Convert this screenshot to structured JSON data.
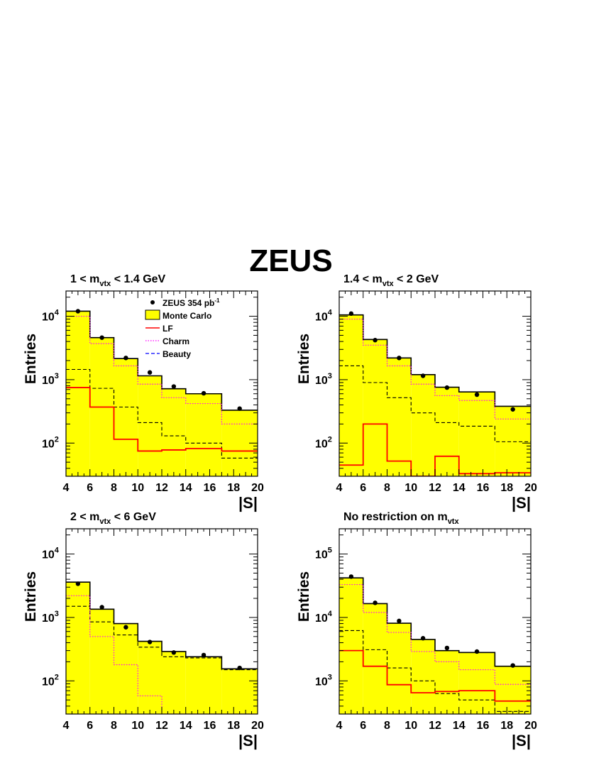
{
  "figure": {
    "title": "ZEUS",
    "colors": {
      "mc_fill": "#ffff00",
      "lf": "#ff0000",
      "charm": "#ff00ff",
      "beauty": "#000000",
      "legend_beauty_line": "#0000ff",
      "data": "#000000"
    },
    "legend": {
      "data": "ZEUS 354 pb",
      "data_sup": "-1",
      "mc": "Monte Carlo",
      "lf": "LF",
      "charm": "Charm",
      "beauty": "Beauty"
    }
  },
  "chart_data": [
    {
      "type": "histogram",
      "title_main": "1 < m",
      "title_sub": "vtx",
      "title_rest": " < 1.4 GeV",
      "ylabel": "Entries",
      "xlabel": "|S|",
      "log_y": true,
      "xlim": [
        4,
        20
      ],
      "ylim": [
        30,
        25000
      ],
      "x_ticks": [
        "4",
        "6",
        "8",
        "10",
        "12",
        "14",
        "16",
        "18",
        "20"
      ],
      "y_ticks": [
        {
          "base": "10",
          "exp": "2",
          "value": 100
        },
        {
          "base": "10",
          "exp": "3",
          "value": 1000
        },
        {
          "base": "10",
          "exp": "4",
          "value": 10000
        }
      ],
      "bin_edges": [
        4,
        6,
        8,
        10,
        12,
        14,
        17,
        20
      ],
      "monte_carlo": [
        12000,
        4600,
        2150,
        1150,
        720,
        600,
        330
      ],
      "lf": [
        750,
        370,
        115,
        75,
        78,
        82,
        75
      ],
      "charm": [
        10000,
        3700,
        1650,
        850,
        520,
        420,
        200
      ],
      "beauty": [
        1450,
        730,
        370,
        210,
        130,
        100,
        58
      ],
      "data_x": [
        5,
        7,
        9,
        11,
        13,
        15.5,
        18.5
      ],
      "data_y": [
        12000,
        4600,
        2200,
        1300,
        780,
        610,
        350
      ],
      "legend_visible": true
    },
    {
      "type": "histogram",
      "title_main": "1.4 < m",
      "title_sub": "vtx",
      "title_rest": " < 2 GeV",
      "ylabel": "Entries",
      "xlabel": "|S|",
      "log_y": true,
      "xlim": [
        4,
        20
      ],
      "ylim": [
        30,
        25000
      ],
      "x_ticks": [
        "4",
        "6",
        "8",
        "10",
        "12",
        "14",
        "16",
        "18",
        "20"
      ],
      "y_ticks": [
        {
          "base": "10",
          "exp": "2",
          "value": 100
        },
        {
          "base": "10",
          "exp": "3",
          "value": 1000
        },
        {
          "base": "10",
          "exp": "4",
          "value": 10000
        }
      ],
      "bin_edges": [
        4,
        6,
        8,
        10,
        12,
        14,
        17,
        20
      ],
      "monte_carlo": [
        10500,
        4300,
        2200,
        1200,
        760,
        640,
        380
      ],
      "lf": [
        45,
        200,
        52,
        28,
        62,
        33,
        34
      ],
      "charm": [
        9000,
        3500,
        1650,
        850,
        560,
        470,
        240
      ],
      "beauty": [
        1650,
        900,
        520,
        300,
        210,
        185,
        105
      ],
      "data_x": [
        5,
        7,
        9,
        11,
        13,
        15.5,
        18.5
      ],
      "data_y": [
        11000,
        4200,
        2200,
        1150,
        750,
        580,
        340
      ],
      "legend_visible": false
    },
    {
      "type": "histogram",
      "title_main": "2 < m",
      "title_sub": "vtx",
      "title_rest": " < 6 GeV",
      "ylabel": "Entries",
      "xlabel": "|S|",
      "log_y": true,
      "xlim": [
        4,
        20
      ],
      "ylim": [
        30,
        25000
      ],
      "x_ticks": [
        "4",
        "6",
        "8",
        "10",
        "12",
        "14",
        "16",
        "18",
        "20"
      ],
      "y_ticks": [
        {
          "base": "10",
          "exp": "2",
          "value": 100
        },
        {
          "base": "10",
          "exp": "3",
          "value": 1000
        },
        {
          "base": "10",
          "exp": "4",
          "value": 10000
        }
      ],
      "bin_edges": [
        4,
        6,
        8,
        10,
        12,
        14,
        17,
        20
      ],
      "monte_carlo": [
        3600,
        1350,
        800,
        420,
        290,
        240,
        155
      ],
      "lf": [],
      "charm": [
        2200,
        500,
        180,
        58,
        30,
        30,
        30
      ],
      "beauty": [
        1500,
        850,
        530,
        340,
        240,
        230,
        150
      ],
      "data_x": [
        5,
        7,
        9,
        11,
        13,
        15.5,
        18.5
      ],
      "data_y": [
        3400,
        1450,
        700,
        410,
        280,
        255,
        160
      ],
      "legend_visible": false
    },
    {
      "type": "histogram",
      "title_main": "No restriction on m",
      "title_sub": "vtx",
      "title_rest": "",
      "ylabel": "Entries",
      "xlabel": "|S|",
      "log_y": true,
      "xlim": [
        4,
        20
      ],
      "ylim": [
        300,
        250000
      ],
      "x_ticks": [
        "4",
        "6",
        "8",
        "10",
        "12",
        "14",
        "16",
        "18",
        "20"
      ],
      "y_ticks": [
        {
          "base": "10",
          "exp": "3",
          "value": 1000
        },
        {
          "base": "10",
          "exp": "4",
          "value": 10000
        },
        {
          "base": "10",
          "exp": "5",
          "value": 100000
        }
      ],
      "bin_edges": [
        4,
        6,
        8,
        10,
        12,
        14,
        17,
        20
      ],
      "monte_carlo": [
        42000,
        16500,
        8100,
        4500,
        3000,
        2800,
        1700
      ],
      "lf": [
        3000,
        1700,
        870,
        650,
        680,
        700,
        480
      ],
      "charm": [
        33000,
        12000,
        5800,
        2900,
        2000,
        1500,
        880
      ],
      "beauty": [
        6200,
        3100,
        1600,
        1000,
        630,
        500,
        330
      ],
      "data_x": [
        5,
        7,
        9,
        11,
        13,
        15.5,
        18.5
      ],
      "data_y": [
        44000,
        17000,
        8800,
        4700,
        3300,
        2900,
        1750
      ],
      "legend_visible": false
    }
  ]
}
